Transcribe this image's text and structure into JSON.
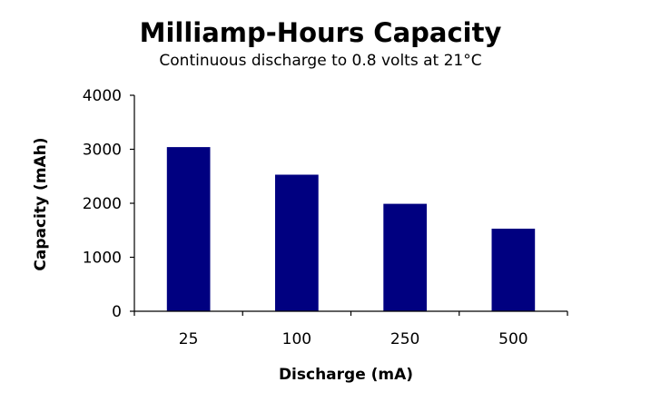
{
  "chart_data": {
    "type": "bar",
    "title": "Milliamp-Hours Capacity",
    "subtitle": "Continuous discharge to 0.8 volts at 21°C",
    "xlabel": "Discharge (mA)",
    "ylabel": "Capacity (mAh)",
    "categories": [
      "25",
      "100",
      "250",
      "500"
    ],
    "values": [
      3040,
      2530,
      1990,
      1530
    ],
    "ylim": [
      0,
      4000
    ],
    "yticks": [
      0,
      1000,
      2000,
      3000,
      4000
    ],
    "grid": false,
    "legend": "none",
    "bar_color": "#000080",
    "axis_color": "#000000"
  }
}
